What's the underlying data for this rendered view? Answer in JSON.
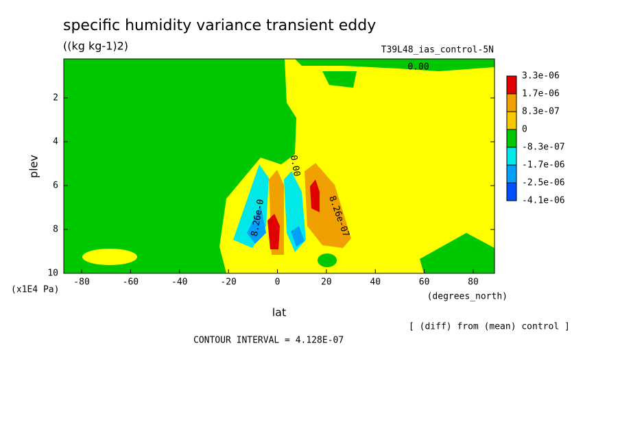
{
  "chart_data": {
    "type": "contour",
    "title": "specific humidity variance transient eddy",
    "subtitle": "((kg kg-1)2)",
    "run_label": "T39L48_ias_control-5N",
    "x_label": "lat",
    "y_label": "plev",
    "x_unit": "(degrees_north)",
    "y_unit": "(x1E4 Pa)",
    "note": "[ (diff) from (mean) control ]",
    "contour_interval": "CONTOUR INTERVAL = 4.128E-07",
    "xlim": [
      -87.3,
      88.7
    ],
    "xticks": [
      -80,
      -60,
      -40,
      -20,
      0,
      20,
      40,
      60,
      80
    ],
    "ylim": [
      10,
      0.22
    ],
    "yticks": [
      2,
      4,
      6,
      8,
      10
    ],
    "contour_labels": [
      "0.00",
      "8.26e-0",
      "0.00",
      "8.26e-07"
    ],
    "legend": {
      "levels": [
        {
          "value": 3.3e-06,
          "label": "3.3e-06"
        },
        {
          "value": 1.7e-06,
          "label": "1.7e-06"
        },
        {
          "value": 8.3e-07,
          "label": "8.3e-07"
        },
        0,
        {
          "value": -8.3e-07,
          "label": "-8.3e-07"
        },
        {
          "value": -1.7e-06,
          "label": "-1.7e-06"
        },
        {
          "value": -2.5e-06,
          "label": "-2.5e-06"
        },
        {
          "value": -4.1e-06,
          "label": "-4.1e-06"
        }
      ],
      "colors": [
        "#e00000",
        "#f0a000",
        "#f8c800",
        "#00c800",
        "#00e8e8",
        "#00a0ff",
        "#0050ff"
      ]
    }
  }
}
